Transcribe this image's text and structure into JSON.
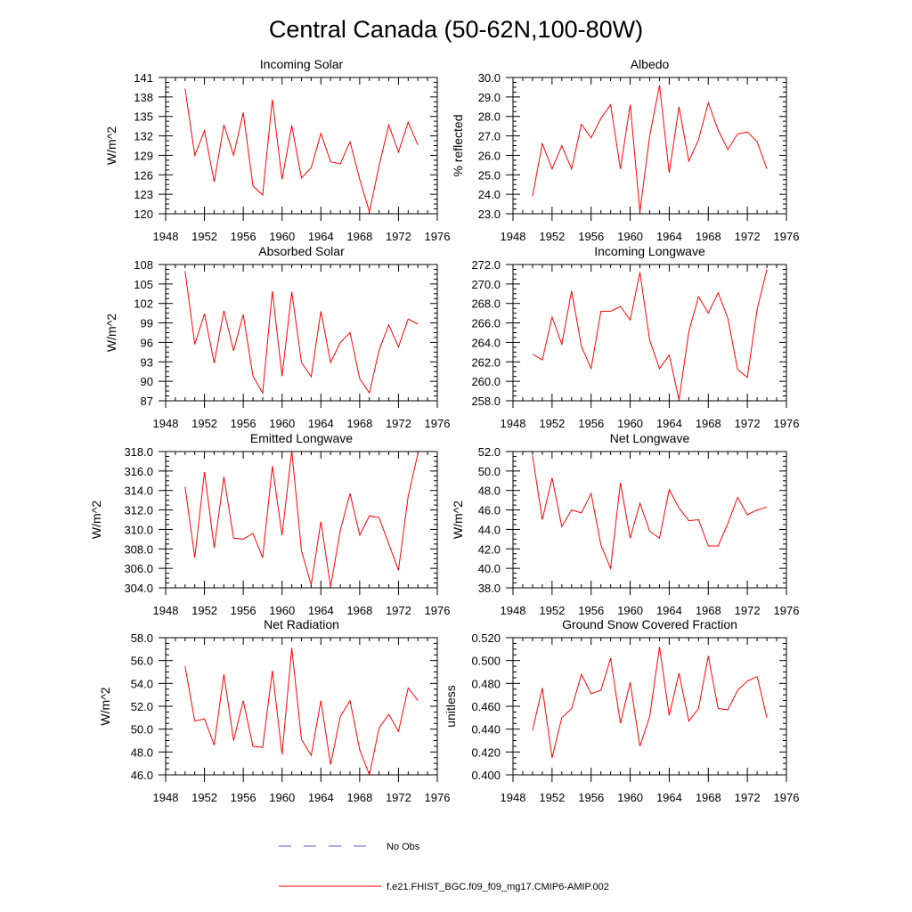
{
  "figure": {
    "title": "Central Canada (50-62N,100-80W)"
  },
  "legend": {
    "entries": [
      {
        "label": "No Obs",
        "color": "#5a5acd",
        "dash": "dashed"
      },
      {
        "label": "f.e21.FHIST_BGC.f09_f09_mg17.CMIP6-AMIP.002",
        "color": "#ff0000",
        "dash": "solid"
      }
    ]
  },
  "chart_data": [
    {
      "type": "line",
      "title": "Incoming Solar",
      "xlabel": "",
      "ylabel": "W/m^2",
      "xlim": [
        1948,
        1976
      ],
      "ylim": [
        120,
        141
      ],
      "xticks": [
        "1948",
        "1952",
        "1956",
        "1960",
        "1964",
        "1968",
        "1972",
        "1976"
      ],
      "yticks": [
        "120",
        "123",
        "126",
        "129",
        "132",
        "135",
        "138",
        "141"
      ],
      "x": [
        1950,
        1951,
        1952,
        1953,
        1954,
        1955,
        1956,
        1957,
        1958,
        1959,
        1960,
        1961,
        1962,
        1963,
        1964,
        1965,
        1966,
        1967,
        1968,
        1969,
        1970,
        1971,
        1972,
        1973,
        1974
      ],
      "series": [
        {
          "name": "f.e21.FHIST_BGC.f09_f09_mg17.CMIP6-AMIP.002",
          "color": "#ff0000",
          "values": [
            139.3,
            129.0,
            132.8,
            124.9,
            133.7,
            129.0,
            135.6,
            124.3,
            122.9,
            137.6,
            125.3,
            133.6,
            125.5,
            127.1,
            132.4,
            128.0,
            127.7,
            131.1,
            125.3,
            120.3,
            127.4,
            133.7,
            129.5,
            134.1,
            130.6
          ]
        }
      ]
    },
    {
      "type": "line",
      "title": "Albedo",
      "xlabel": "",
      "ylabel": "% reflected",
      "xlim": [
        1948,
        1976
      ],
      "ylim": [
        23.0,
        30.0
      ],
      "xticks": [
        "1948",
        "1952",
        "1956",
        "1960",
        "1964",
        "1968",
        "1972",
        "1976"
      ],
      "yticks": [
        "23.0",
        "24.0",
        "25.0",
        "26.0",
        "27.0",
        "28.0",
        "29.0",
        "30.0"
      ],
      "x": [
        1950,
        1951,
        1952,
        1953,
        1954,
        1955,
        1956,
        1957,
        1958,
        1959,
        1960,
        1961,
        1962,
        1963,
        1964,
        1965,
        1966,
        1967,
        1968,
        1969,
        1970,
        1971,
        1972,
        1973,
        1974
      ],
      "series": [
        {
          "name": "f.e21.FHIST_BGC.f09_f09_mg17.CMIP6-AMIP.002",
          "color": "#ff0000",
          "values": [
            23.9,
            26.6,
            25.3,
            26.5,
            25.3,
            27.6,
            26.9,
            27.9,
            28.6,
            25.3,
            28.6,
            23.1,
            27.0,
            29.6,
            25.1,
            28.5,
            25.7,
            26.8,
            28.7,
            27.3,
            26.3,
            27.1,
            27.2,
            26.7,
            25.3
          ]
        }
      ]
    },
    {
      "type": "line",
      "title": "Absorbed Solar",
      "xlabel": "",
      "ylabel": "W/m^2",
      "xlim": [
        1948,
        1976
      ],
      "ylim": [
        87,
        108
      ],
      "xticks": [
        "1948",
        "1952",
        "1956",
        "1960",
        "1964",
        "1968",
        "1972",
        "1976"
      ],
      "yticks": [
        "87",
        "90",
        "93",
        "96",
        "99",
        "102",
        "105",
        "108"
      ],
      "x": [
        1950,
        1951,
        1952,
        1953,
        1954,
        1955,
        1956,
        1957,
        1958,
        1959,
        1960,
        1961,
        1962,
        1963,
        1964,
        1965,
        1966,
        1967,
        1968,
        1969,
        1970,
        1971,
        1972,
        1973,
        1974
      ],
      "series": [
        {
          "name": "f.e21.FHIST_BGC.f09_f09_mg17.CMIP6-AMIP.002",
          "color": "#ff0000",
          "values": [
            107.0,
            95.7,
            100.4,
            92.8,
            100.9,
            94.7,
            100.3,
            90.8,
            88.2,
            103.9,
            90.8,
            103.8,
            92.9,
            90.7,
            100.8,
            92.9,
            96.0,
            97.5,
            90.4,
            88.2,
            94.8,
            98.7,
            95.3,
            99.6,
            98.8
          ]
        }
      ]
    },
    {
      "type": "line",
      "title": "Incoming Longwave",
      "xlabel": "",
      "ylabel": "",
      "xlim": [
        1948,
        1976
      ],
      "ylim": [
        258.0,
        272.0
      ],
      "xticks": [
        "1948",
        "1952",
        "1956",
        "1960",
        "1964",
        "1968",
        "1972",
        "1976"
      ],
      "yticks": [
        "258.0",
        "260.0",
        "262.0",
        "264.0",
        "266.0",
        "268.0",
        "270.0",
        "272.0"
      ],
      "x": [
        1950,
        1951,
        1952,
        1953,
        1954,
        1955,
        1956,
        1957,
        1958,
        1959,
        1960,
        1961,
        1962,
        1963,
        1964,
        1965,
        1966,
        1967,
        1968,
        1969,
        1970,
        1971,
        1972,
        1973,
        1974
      ],
      "series": [
        {
          "name": "f.e21.FHIST_BGC.f09_f09_mg17.CMIP6-AMIP.002",
          "color": "#ff0000",
          "values": [
            262.8,
            262.2,
            266.6,
            263.8,
            269.3,
            263.6,
            261.3,
            267.2,
            267.2,
            267.7,
            266.3,
            271.2,
            264.2,
            261.3,
            262.7,
            258.1,
            265.1,
            268.7,
            267.0,
            269.1,
            266.5,
            261.2,
            260.4,
            267.4,
            271.5
          ]
        }
      ]
    },
    {
      "type": "line",
      "title": "Emitted Longwave",
      "xlabel": "",
      "ylabel": "W/m^2",
      "xlim": [
        1948,
        1976
      ],
      "ylim": [
        304.0,
        318.0
      ],
      "xticks": [
        "1948",
        "1952",
        "1956",
        "1960",
        "1964",
        "1968",
        "1972",
        "1976"
      ],
      "yticks": [
        "304.0",
        "306.0",
        "308.0",
        "310.0",
        "312.0",
        "314.0",
        "316.0",
        "318.0"
      ],
      "x": [
        1950,
        1951,
        1952,
        1953,
        1954,
        1955,
        1956,
        1957,
        1958,
        1959,
        1960,
        1961,
        1962,
        1963,
        1964,
        1965,
        1966,
        1967,
        1968,
        1969,
        1970,
        1971,
        1972,
        1973,
        1974
      ],
      "series": [
        {
          "name": "f.e21.FHIST_BGC.f09_f09_mg17.CMIP6-AMIP.002",
          "color": "#ff0000",
          "values": [
            314.4,
            307.1,
            315.9,
            308.1,
            315.4,
            309.1,
            309.0,
            309.6,
            307.1,
            316.5,
            309.4,
            318.1,
            307.8,
            304.3,
            310.8,
            304.1,
            309.9,
            313.7,
            309.4,
            311.4,
            311.2,
            308.5,
            305.8,
            313.4,
            317.8
          ]
        }
      ]
    },
    {
      "type": "line",
      "title": "Net Longwave",
      "xlabel": "",
      "ylabel": "W/m^2",
      "xlim": [
        1948,
        1976
      ],
      "ylim": [
        38.0,
        52.0
      ],
      "xticks": [
        "1948",
        "1952",
        "1956",
        "1960",
        "1964",
        "1968",
        "1972",
        "1976"
      ],
      "yticks": [
        "38.0",
        "40.0",
        "42.0",
        "44.0",
        "46.0",
        "48.0",
        "50.0",
        "52.0"
      ],
      "x": [
        1950,
        1951,
        1952,
        1953,
        1954,
        1955,
        1956,
        1957,
        1958,
        1959,
        1960,
        1961,
        1962,
        1963,
        1964,
        1965,
        1966,
        1967,
        1968,
        1969,
        1970,
        1971,
        1972,
        1973,
        1974
      ],
      "series": [
        {
          "name": "f.e21.FHIST_BGC.f09_f09_mg17.CMIP6-AMIP.002",
          "color": "#ff0000",
          "values": [
            51.6,
            45.0,
            49.3,
            44.3,
            46.0,
            45.7,
            47.7,
            42.4,
            40.0,
            48.8,
            43.1,
            46.7,
            43.8,
            43.1,
            48.1,
            46.2,
            44.9,
            45.0,
            42.3,
            42.3,
            44.6,
            47.3,
            45.5,
            46.0,
            46.3
          ]
        }
      ]
    },
    {
      "type": "line",
      "title": "Net Radiation",
      "xlabel": "",
      "ylabel": "W/m^2",
      "xlim": [
        1948,
        1976
      ],
      "ylim": [
        46.0,
        58.0
      ],
      "xticks": [
        "1948",
        "1952",
        "1956",
        "1960",
        "1964",
        "1968",
        "1972",
        "1976"
      ],
      "yticks": [
        "46.0",
        "48.0",
        "50.0",
        "52.0",
        "54.0",
        "56.0",
        "58.0"
      ],
      "x": [
        1950,
        1951,
        1952,
        1953,
        1954,
        1955,
        1956,
        1957,
        1958,
        1959,
        1960,
        1961,
        1962,
        1963,
        1964,
        1965,
        1966,
        1967,
        1968,
        1969,
        1970,
        1971,
        1972,
        1973,
        1974
      ],
      "series": [
        {
          "name": "f.e21.FHIST_BGC.f09_f09_mg17.CMIP6-AMIP.002",
          "color": "#ff0000",
          "values": [
            55.5,
            50.7,
            50.9,
            48.6,
            54.8,
            49.0,
            52.5,
            48.5,
            48.4,
            55.1,
            47.8,
            57.1,
            49.1,
            47.7,
            52.5,
            46.9,
            51.1,
            52.5,
            48.2,
            46.0,
            50.1,
            51.3,
            49.8,
            53.6,
            52.5
          ]
        }
      ]
    },
    {
      "type": "line",
      "title": "Ground Snow Covered Fraction",
      "xlabel": "",
      "ylabel": "unitless",
      "xlim": [
        1948,
        1976
      ],
      "ylim": [
        0.4,
        0.52
      ],
      "xticks": [
        "1948",
        "1952",
        "1956",
        "1960",
        "1964",
        "1968",
        "1972",
        "1976"
      ],
      "yticks": [
        "0.400",
        "0.420",
        "0.440",
        "0.460",
        "0.480",
        "0.500",
        "0.520"
      ],
      "x": [
        1950,
        1951,
        1952,
        1953,
        1954,
        1955,
        1956,
        1957,
        1958,
        1959,
        1960,
        1961,
        1962,
        1963,
        1964,
        1965,
        1966,
        1967,
        1968,
        1969,
        1970,
        1971,
        1972,
        1973,
        1974
      ],
      "series": [
        {
          "name": "f.e21.FHIST_BGC.f09_f09_mg17.CMIP6-AMIP.002",
          "color": "#ff0000",
          "values": [
            0.439,
            0.476,
            0.415,
            0.45,
            0.458,
            0.488,
            0.471,
            0.474,
            0.502,
            0.445,
            0.481,
            0.425,
            0.451,
            0.512,
            0.452,
            0.489,
            0.447,
            0.458,
            0.504,
            0.458,
            0.457,
            0.474,
            0.482,
            0.486,
            0.45
          ]
        }
      ]
    }
  ]
}
